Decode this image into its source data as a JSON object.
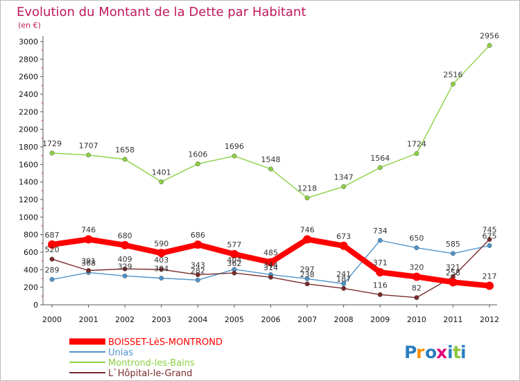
{
  "chart_data": {
    "type": "line",
    "title": "Evolution du Montant de la Dette par Habitant",
    "subtitle": "(en €)",
    "x": [
      "2000",
      "2001",
      "2002",
      "2003",
      "2004",
      "2005",
      "2006",
      "2007",
      "2008",
      "2009",
      "2010",
      "2011",
      "2012"
    ],
    "yticks": [
      "0",
      "200",
      "400",
      "600",
      "800",
      "1000",
      "1200",
      "1400",
      "1600",
      "1800",
      "2000",
      "2200",
      "2400",
      "2600",
      "2800",
      "3000"
    ],
    "ylim": [
      0,
      3000
    ],
    "grid": false,
    "legend_position": "bottom-left",
    "series": [
      {
        "name": "BOISSET-LèS-MONTROND",
        "color": "#ff0000",
        "values": [
          687,
          746,
          680,
          590,
          686,
          577,
          485,
          746,
          673,
          371,
          320,
          258,
          217
        ],
        "labels": [
          "687",
          "746",
          "680",
          "590",
          "686",
          "577",
          "485",
          "746",
          "673",
          "371",
          "320",
          "258",
          "217"
        ]
      },
      {
        "name": "Unias",
        "color": "#4f93c9",
        "values": [
          289,
          368,
          329,
          304,
          282,
          404,
          344,
          297,
          241,
          734,
          650,
          585,
          675
        ],
        "labels": [
          "289",
          "368",
          "329",
          "304",
          "282",
          "404",
          "344",
          "297",
          "241",
          "734",
          "650",
          "585",
          "675"
        ]
      },
      {
        "name": "Montrond-les-Bains",
        "color": "#8cd043",
        "values": [
          1729,
          1707,
          1658,
          1401,
          1606,
          1696,
          1548,
          1218,
          1347,
          1564,
          1724,
          2516,
          2956
        ],
        "labels": [
          "1729",
          "1707",
          "1658",
          "1401",
          "1606",
          "1696",
          "1548",
          "1218",
          "1347",
          "1564",
          "1724",
          "2516",
          "2956"
        ]
      },
      {
        "name": "L`Hôpital-le-Grand",
        "color": "#7a2a2a",
        "values": [
          520,
          391,
          409,
          403,
          343,
          362,
          314,
          238,
          187,
          116,
          82,
          321,
          745
        ],
        "labels": [
          "520",
          "391",
          "409",
          "403",
          "343",
          "362",
          "314",
          "238",
          "187",
          "116",
          "82",
          "321",
          "745"
        ]
      }
    ]
  },
  "brand": {
    "text": "Proxiti",
    "letters": [
      "P",
      "r",
      "o",
      "x",
      "i",
      "t",
      "i"
    ],
    "colors": [
      "#2c7fc1",
      "#f39200",
      "#2c7fc1",
      "#e2007a",
      "#2c7fc1",
      "#8cc63f",
      "#2c7fc1"
    ]
  },
  "colors": {
    "title": "#c0185a",
    "axis": "#555555"
  }
}
